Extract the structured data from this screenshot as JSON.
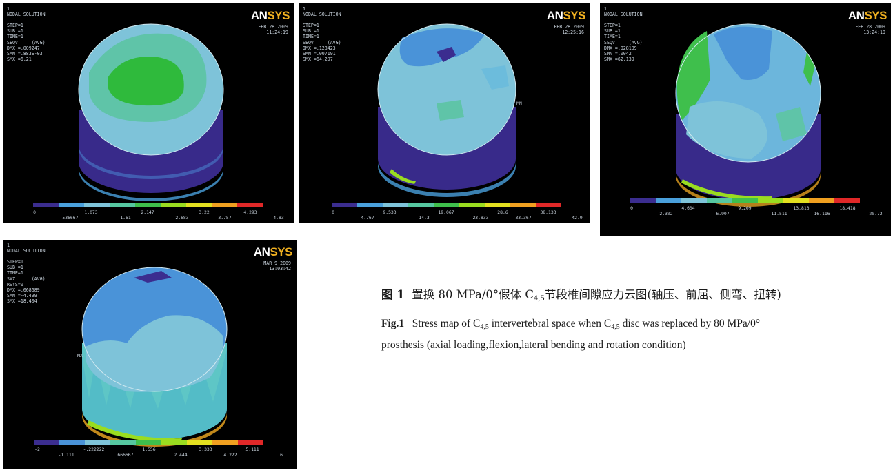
{
  "panels": [
    {
      "id": "p1",
      "header": [
        "1",
        "NODAL SOLUTION",
        "",
        "STEP=1",
        "SUB =1",
        "TIME=1",
        "SEQV     (AVG)",
        "DMX =.009247",
        "SMN =.883E-03",
        "SMX =6.21"
      ],
      "date": "FEB 28 2009",
      "time": "11:24:19",
      "legend_top": [
        "0",
        "1.073",
        "2.147",
        "3.22",
        "4.293"
      ],
      "legend_bottom": [
        ".536667",
        "1.61",
        "2.683",
        "3.757",
        "4.83"
      ]
    },
    {
      "id": "p2",
      "header": [
        "1",
        "NODAL SOLUTION",
        "",
        "STEP=1",
        "SUB =1",
        "TIME=1",
        "SEQV     (AVG)",
        "DMX =.128423",
        "SMN =.007191",
        "SMX =64.297"
      ],
      "date": "FEB 28 2009",
      "time": "12:25:16",
      "legend_top": [
        "0",
        "9.533",
        "19.067",
        "28.6",
        "38.133"
      ],
      "legend_bottom": [
        "4.767",
        "14.3",
        "23.833",
        "33.367",
        "42.9"
      ],
      "marker": "MN"
    },
    {
      "id": "p3",
      "header": [
        "1",
        "NODAL SOLUTION",
        "",
        "STEP=1",
        "SUB =1",
        "TIME=1",
        "SEQV     (AVG)",
        "DMX =.028109",
        "SMN =.0042",
        "SMX =62.139"
      ],
      "date": "FEB 28 2009",
      "time": "13:24:19",
      "legend_top": [
        "0",
        "4.604",
        "9.209",
        "13.813",
        "18.418"
      ],
      "legend_bottom": [
        "2.302",
        "6.907",
        "11.511",
        "16.116",
        "20.72"
      ]
    },
    {
      "id": "p4",
      "header": [
        "1",
        "NODAL SOLUTION",
        "",
        "STEP=1",
        "SUB =1",
        "TIME=1",
        "SXZ      (AVG)",
        "RSYS=0",
        "DMX =.068689",
        "SMN =-4.499",
        "SMX =18.404"
      ],
      "date": "MAR  9 2009",
      "time": "13:03:42",
      "legend_top": [
        "-2",
        "-.222222",
        "1.556",
        "3.333",
        "5.111"
      ],
      "legend_bottom": [
        "-1.111",
        ".666667",
        "2.444",
        "4.222",
        "6"
      ],
      "marker": "MX"
    }
  ],
  "logo": {
    "an": "AN",
    "sys": "SYS"
  },
  "legend_colors": [
    "#3b2d8f",
    "#2f62c4",
    "#4aa0dc",
    "#56c7c0",
    "#3fbf4c",
    "#9adc20",
    "#e3e020",
    "#f0a020",
    "#e02828"
  ],
  "caption": {
    "cn_label": "图 1",
    "cn_text_a": "置换 80 MPa/0°假体 C",
    "cn_sub": "4,5",
    "cn_text_b": "节段椎间隙应力云图(轴压、前屈、侧弯、扭转)",
    "en_label": "Fig.1",
    "en_text_a": "Stress map of C",
    "en_sub_a": "4,5",
    "en_text_b": " intervertebral space when C",
    "en_sub_b": "4,5",
    "en_text_c": " disc was replaced by  80 MPa/0° prosthesis  (axial loading,flexion,lateral bending and rotation condition)"
  }
}
